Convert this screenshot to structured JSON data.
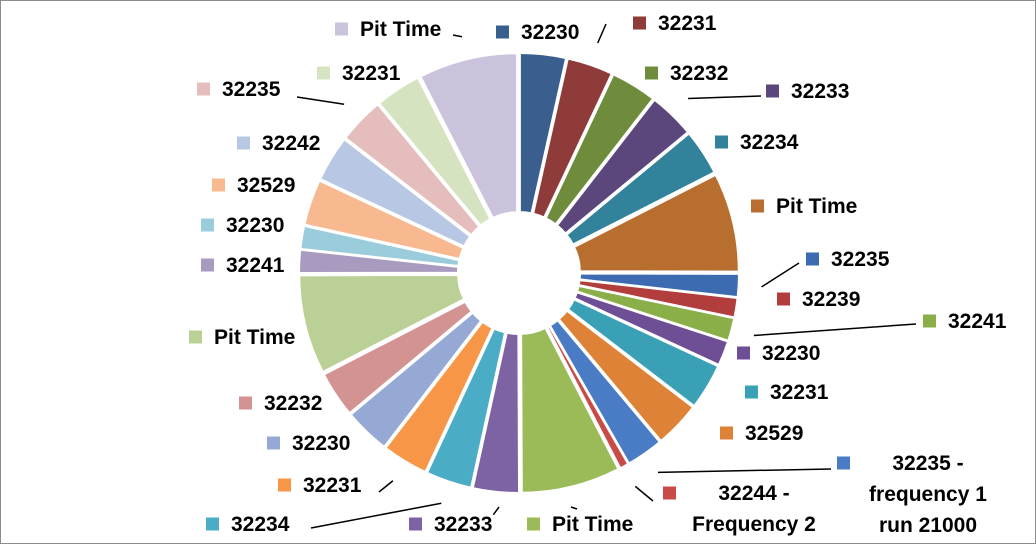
{
  "chart_data": {
    "type": "pie",
    "title": "",
    "legend": "none",
    "unit": "share of total (%)",
    "slices": [
      {
        "label": "32230",
        "value": 2.6,
        "color": "#3A5F8E"
      },
      {
        "label": "32231",
        "value": 2.6,
        "color": "#8E3B3A"
      },
      {
        "label": "32232",
        "value": 2.6,
        "color": "#6E8C3C"
      },
      {
        "label": "32233",
        "value": 2.6,
        "color": "#5B477B"
      },
      {
        "label": "32234",
        "value": 2.6,
        "color": "#31829A"
      },
      {
        "label": "Pit Time",
        "value": 5.6,
        "color": "#B86E2F"
      },
      {
        "label": "32235",
        "value": 1.3,
        "color": "#3D6BB1"
      },
      {
        "label": "32239",
        "value": 1.1,
        "color": "#B13E3C"
      },
      {
        "label": "32241",
        "value": 1.3,
        "color": "#8AAE48"
      },
      {
        "label": "32230",
        "value": 1.4,
        "color": "#6E4E94"
      },
      {
        "label": "32231",
        "value": 2.6,
        "color": "#3AA0B6"
      },
      {
        "label": "32529",
        "value": 2.6,
        "color": "#DE8238"
      },
      {
        "label": "32235 - frequency 1 run 21000",
        "value": 2.1,
        "color": "#4A7BC5"
      },
      {
        "label": "32244 - Frequency 2",
        "value": 0.5,
        "color": "#C84B48"
      },
      {
        "label": "Pit Time",
        "value": 5.6,
        "color": "#9BBB59"
      },
      {
        "label": "32233",
        "value": 2.6,
        "color": "#7E63A4"
      },
      {
        "label": "32234",
        "value": 2.6,
        "color": "#4BACC6"
      },
      {
        "label": "32231",
        "value": 2.6,
        "color": "#F79646"
      },
      {
        "label": "32230",
        "value": 2.6,
        "color": "#95A9D4"
      },
      {
        "label": "32232",
        "value": 2.6,
        "color": "#D39393"
      },
      {
        "label": "Pit Time",
        "value": 5.6,
        "color": "#BBD096"
      },
      {
        "label": "32241",
        "value": 1.3,
        "color": "#A99BBF"
      },
      {
        "label": "32230",
        "value": 1.3,
        "color": "#9BCCDC"
      },
      {
        "label": "32529",
        "value": 2.6,
        "color": "#F8B991"
      },
      {
        "label": "32242",
        "value": 2.6,
        "color": "#B8C8E4"
      },
      {
        "label": "32235",
        "value": 2.6,
        "color": "#E4BDBC"
      },
      {
        "label": "32231",
        "value": 2.6,
        "color": "#D5E3C0"
      },
      {
        "label": "Pit Time",
        "value": 5.6,
        "color": "#CBC3DC"
      }
    ]
  }
}
